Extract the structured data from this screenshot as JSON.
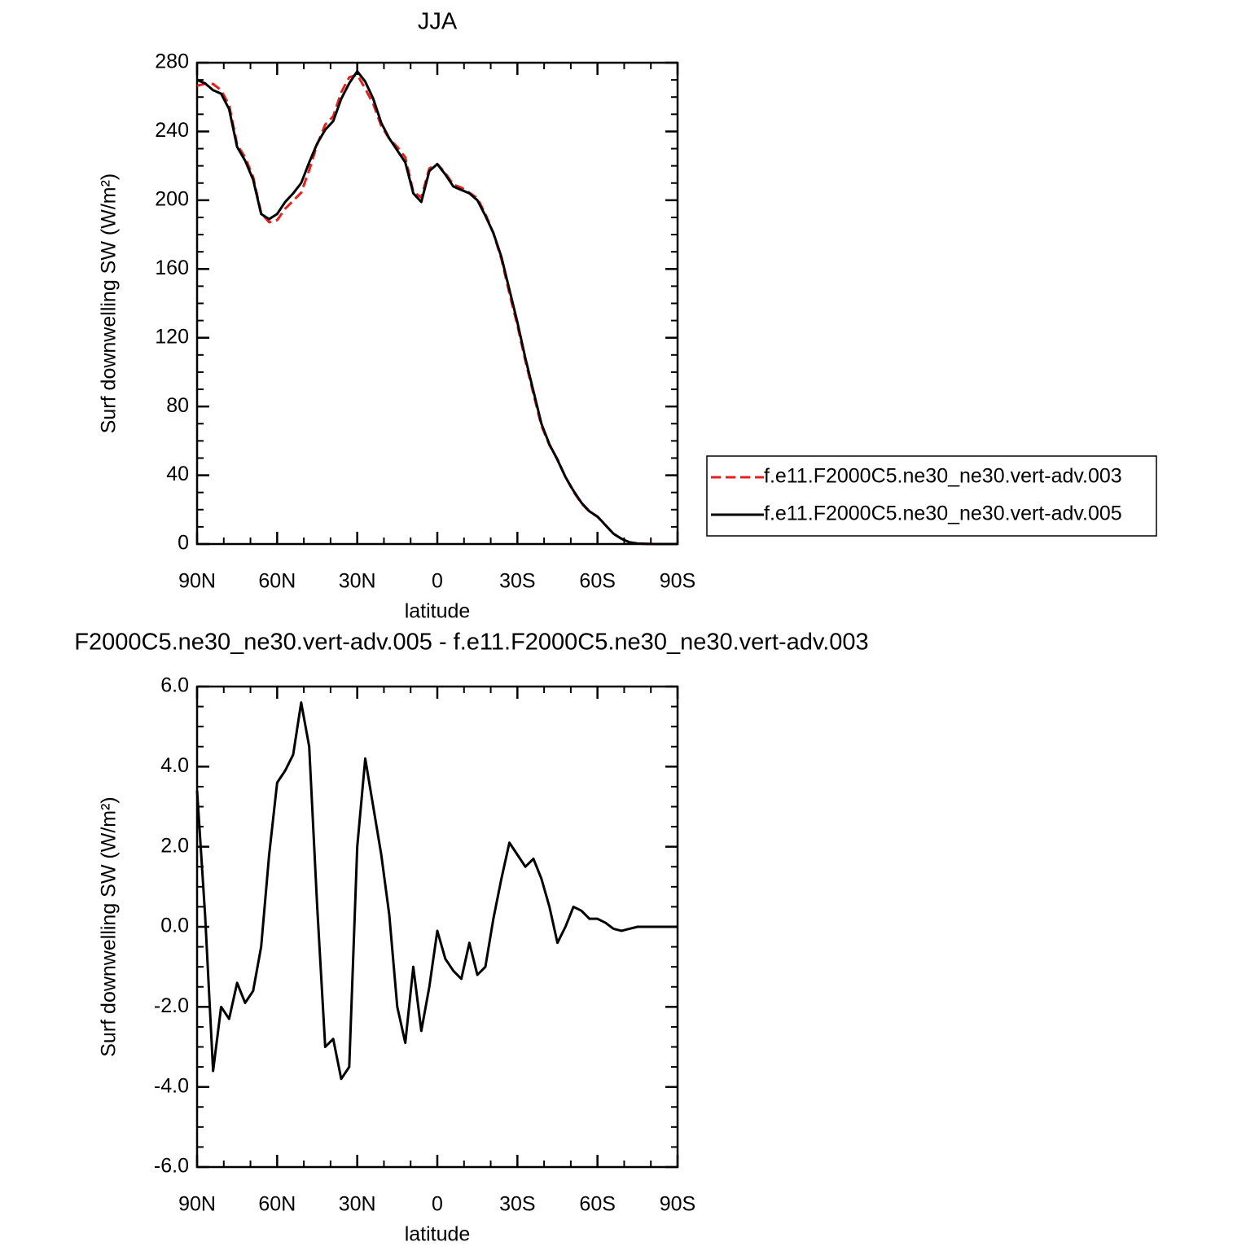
{
  "chart_data": [
    {
      "type": "line",
      "title": "JJA",
      "xlabel": "latitude",
      "ylabel": "Surf downwelling SW (W/m²)",
      "x": [
        90,
        87,
        84,
        81,
        78,
        75,
        72,
        69,
        66,
        63,
        60,
        57,
        54,
        51,
        48,
        45,
        42,
        39,
        36,
        33,
        30,
        27,
        24,
        21,
        18,
        15,
        12,
        9,
        6,
        3,
        0,
        -3,
        -6,
        -9,
        -12,
        -15,
        -18,
        -21,
        -24,
        -27,
        -30,
        -33,
        -36,
        -39,
        -42,
        -45,
        -48,
        -51,
        -54,
        -57,
        -60,
        -63,
        -66,
        -69,
        -72,
        -75,
        -78,
        -81,
        -84,
        -87,
        -90
      ],
      "xlim": [
        90,
        -90
      ],
      "xticks": [
        {
          "value": 90,
          "label": "90N"
        },
        {
          "value": 60,
          "label": "60N"
        },
        {
          "value": 30,
          "label": "30N"
        },
        0,
        {
          "value": -30,
          "label": "30S"
        },
        {
          "value": -60,
          "label": "60S"
        },
        {
          "value": -90,
          "label": "90S"
        }
      ],
      "ylim": [
        0,
        280
      ],
      "yticks": [
        0,
        40,
        80,
        120,
        160,
        200,
        240,
        280
      ],
      "legend": "right",
      "series": [
        {
          "name": "f.e11.F2000C5.ne30_ne30.vert-adv.003",
          "color": "#e8201c",
          "linestyle": "dashed",
          "values": [
            266.6,
            267.7,
            267.6,
            264,
            255.3,
            232.4,
            224.9,
            213.6,
            192.5,
            187.2,
            188.4,
            195.1,
            199.7,
            204.4,
            217.5,
            232.5,
            244,
            248.8,
            262.8,
            271.5,
            273,
            264.8,
            256,
            243.2,
            235.7,
            231,
            224.9,
            205,
            201.6,
            218.5,
            221.1,
            215.8,
            209.1,
            207.3,
            204.4,
            201.2,
            192,
            180.8,
            165.8,
            145.9,
            127.2,
            106.5,
            87.3,
            68.8,
            57.5,
            49.4,
            39,
            30.5,
            23.6,
            18.8,
            15.8,
            10.9,
            6,
            3.1,
            1,
            0.3,
            0.1,
            0,
            0,
            0,
            0
          ]
        },
        {
          "name": "f.e11.F2000C5.ne30_ne30.vert-adv.005",
          "color": "#000000",
          "linestyle": "solid",
          "values": [
            270,
            268,
            264,
            262,
            253,
            231,
            223,
            212,
            192,
            189,
            192,
            199,
            204,
            210,
            222,
            233,
            241,
            246,
            259,
            268,
            275,
            269,
            259,
            245,
            236,
            229,
            222,
            204,
            199,
            217,
            221,
            215,
            208,
            206,
            204,
            200,
            191,
            181,
            167,
            148,
            129,
            108,
            89,
            70,
            58,
            49,
            39,
            31,
            24,
            19,
            16,
            11,
            6,
            3,
            1,
            0.3,
            0.1,
            0,
            0,
            0,
            0
          ]
        }
      ]
    },
    {
      "type": "line",
      "title": "F2000C5.ne30_ne30.vert-adv.005 - f.e11.F2000C5.ne30_ne30.vert-adv.003",
      "xlabel": "latitude",
      "ylabel": "Surf downwelling SW (W/m²)",
      "x": [
        90,
        87,
        84,
        81,
        78,
        75,
        72,
        69,
        66,
        63,
        60,
        57,
        54,
        51,
        48,
        45,
        42,
        39,
        36,
        33,
        30,
        27,
        24,
        21,
        18,
        15,
        12,
        9,
        6,
        3,
        0,
        -3,
        -6,
        -9,
        -12,
        -15,
        -18,
        -21,
        -24,
        -27,
        -30,
        -33,
        -36,
        -39,
        -42,
        -45,
        -48,
        -51,
        -54,
        -57,
        -60,
        -63,
        -66,
        -69,
        -72,
        -75,
        -78,
        -81,
        -84,
        -87,
        -90
      ],
      "xlim": [
        90,
        -90
      ],
      "xticks": [
        {
          "value": 90,
          "label": "90N"
        },
        {
          "value": 60,
          "label": "60N"
        },
        {
          "value": 30,
          "label": "30N"
        },
        0,
        {
          "value": -30,
          "label": "30S"
        },
        {
          "value": -60,
          "label": "60S"
        },
        {
          "value": -90,
          "label": "90S"
        }
      ],
      "ylim": [
        -6,
        6
      ],
      "yticks": [
        {
          "value": -6,
          "label": "-6.0"
        },
        {
          "value": -4,
          "label": "-4.0"
        },
        {
          "value": -2,
          "label": "-2.0"
        },
        {
          "value": 0,
          "label": "0.0"
        },
        {
          "value": 2,
          "label": "2.0"
        },
        {
          "value": 4,
          "label": "4.0"
        },
        {
          "value": 6,
          "label": "6.0"
        }
      ],
      "series": [
        {
          "color": "#000000",
          "linestyle": "solid",
          "values": [
            3.4,
            0.3,
            -3.6,
            -2.0,
            -2.3,
            -1.4,
            -1.9,
            -1.6,
            -0.5,
            1.8,
            3.6,
            3.9,
            4.3,
            5.6,
            4.5,
            0.5,
            -3.0,
            -2.8,
            -3.8,
            -3.5,
            2.0,
            4.2,
            3.0,
            1.8,
            0.3,
            -2.0,
            -2.9,
            -1.0,
            -2.6,
            -1.5,
            -0.1,
            -0.8,
            -1.1,
            -1.3,
            -0.4,
            -1.2,
            -1.0,
            0.2,
            1.2,
            2.1,
            1.8,
            1.5,
            1.7,
            1.2,
            0.5,
            -0.4,
            0.0,
            0.5,
            0.4,
            0.2,
            0.2,
            0.1,
            -0.05,
            -0.1,
            -0.05,
            0,
            0,
            0,
            0,
            0,
            0
          ]
        }
      ]
    }
  ]
}
